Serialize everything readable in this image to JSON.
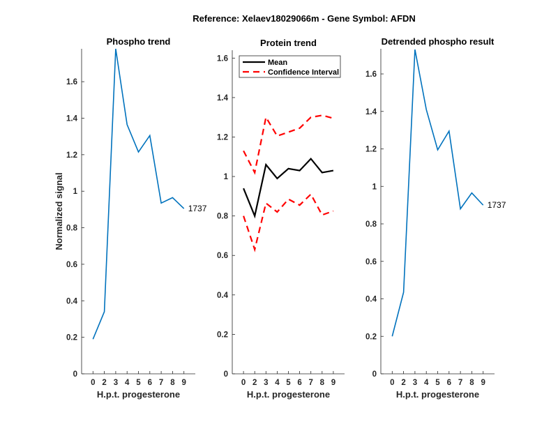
{
  "chart_data": {
    "suptitle": "Reference:  Xelaev18029066m - Gene Symbol:  AFDN",
    "panels": [
      {
        "type": "line",
        "title": "Phospho trend",
        "xlabel": "H.p.t. progesterone",
        "ylabel": "Normalized signal",
        "x_ticklabels": [
          "0",
          "2",
          "3",
          "4",
          "5",
          "6",
          "7",
          "8",
          "9"
        ],
        "ylim": [
          0,
          1.78
        ],
        "yticks": [
          "0",
          "0.2",
          "0.4",
          "0.6",
          "0.8",
          "1",
          "1.2",
          "1.4",
          "1.6"
        ],
        "series": [
          {
            "name": "1737",
            "color": "#0072BD",
            "style": "solid",
            "values": [
              0.19,
              0.34,
              1.78,
              1.365,
              1.215,
              1.305,
              0.935,
              0.965,
              0.905
            ]
          }
        ],
        "end_label": "1737"
      },
      {
        "type": "line",
        "title": "Protein trend",
        "xlabel": "H.p.t. progesterone",
        "ylabel": "",
        "x_ticklabels": [
          "0",
          "2",
          "3",
          "4",
          "5",
          "6",
          "7",
          "8",
          "9"
        ],
        "ylim": [
          0,
          1.64
        ],
        "yticks": [
          "0",
          "0.2",
          "0.4",
          "0.6",
          "0.8",
          "1",
          "1.2",
          "1.4",
          "1.6"
        ],
        "legend": {
          "placement": "top-right",
          "entries": [
            "Mean",
            "Confidence Interval"
          ]
        },
        "series": [
          {
            "name": "Mean",
            "color": "#000000",
            "style": "solid",
            "values": [
              0.94,
              0.8,
              1.06,
              0.99,
              1.04,
              1.03,
              1.09,
              1.02,
              1.03
            ]
          },
          {
            "name": "Confidence Interval",
            "color": "#FF0000",
            "style": "dashed",
            "values": [
              1.13,
              1.02,
              1.3,
              1.205,
              1.225,
              1.245,
              1.3,
              1.31,
              1.295
            ]
          },
          {
            "name": "Confidence Interval lower",
            "color": "#FF0000",
            "style": "dashed",
            "values": [
              0.8,
              0.63,
              0.865,
              0.82,
              0.885,
              0.855,
              0.91,
              0.805,
              0.825
            ]
          }
        ]
      },
      {
        "type": "line",
        "title": "Detrended phospho result",
        "xlabel": "H.p.t. progesterone",
        "ylabel": "",
        "x_ticklabels": [
          "0",
          "2",
          "3",
          "4",
          "5",
          "6",
          "7",
          "8",
          "9"
        ],
        "ylim": [
          0,
          1.734
        ],
        "yticks": [
          "0",
          "0.2",
          "0.4",
          "0.6",
          "0.8",
          "1",
          "1.2",
          "1.4",
          "1.6"
        ],
        "series": [
          {
            "name": "1737",
            "color": "#0072BD",
            "style": "solid",
            "values": [
              0.2,
              0.435,
              1.73,
              1.41,
              1.195,
              1.295,
              0.88,
              0.965,
              0.9
            ]
          }
        ],
        "end_label": "1737"
      }
    ]
  }
}
